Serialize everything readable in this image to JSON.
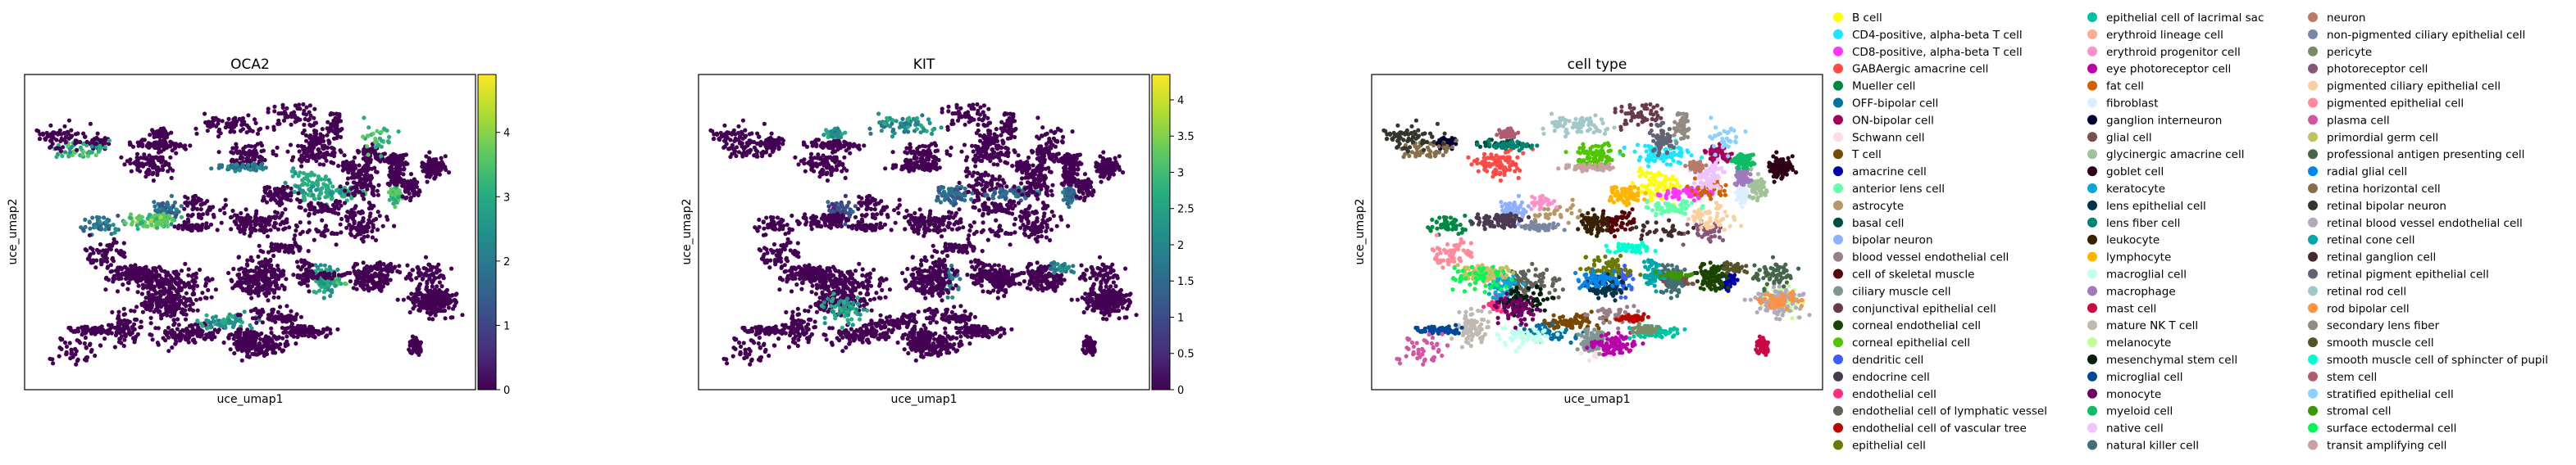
{
  "chart_data": [
    {
      "type": "scatter",
      "title": "OCA2",
      "xlabel": "uce_umap1",
      "ylabel": "uce_umap2",
      "colormap": "viridis",
      "colorbar": {
        "min": 0,
        "max": 4.9,
        "ticks": [
          "0",
          "1",
          "2",
          "3",
          "4"
        ],
        "tick_values": [
          0,
          1,
          2,
          3,
          4
        ]
      }
    },
    {
      "type": "scatter",
      "title": "KIT",
      "xlabel": "uce_umap1",
      "ylabel": "uce_umap2",
      "colormap": "viridis",
      "colorbar": {
        "min": 0,
        "max": 4.35,
        "ticks": [
          "0",
          "0.5",
          "1",
          "1.5",
          "2",
          "2.5",
          "3",
          "3.5",
          "4"
        ],
        "tick_values": [
          0,
          0.5,
          1,
          1.5,
          2,
          2.5,
          3,
          3.5,
          4
        ]
      }
    },
    {
      "type": "scatter",
      "title": "cell type",
      "xlabel": "uce_umap1",
      "ylabel": "uce_umap2",
      "legend_placement": "right",
      "legend": [
        {
          "label": "B cell",
          "color": "#ffff00"
        },
        {
          "label": "CD4-positive, alpha-beta T cell",
          "color": "#1ce6ff"
        },
        {
          "label": "CD8-positive, alpha-beta T cell",
          "color": "#ff34ff"
        },
        {
          "label": "GABAergic amacrine cell",
          "color": "#ff4a46"
        },
        {
          "label": "Mueller cell",
          "color": "#008941"
        },
        {
          "label": "OFF-bipolar cell",
          "color": "#006fa6"
        },
        {
          "label": "ON-bipolar cell",
          "color": "#a30059"
        },
        {
          "label": "Schwann cell",
          "color": "#ffdbe5"
        },
        {
          "label": "T cell",
          "color": "#7a4900"
        },
        {
          "label": "amacrine cell",
          "color": "#0000a6"
        },
        {
          "label": "anterior lens cell",
          "color": "#63ffac"
        },
        {
          "label": "astrocyte",
          "color": "#b79762"
        },
        {
          "label": "basal cell",
          "color": "#004d43"
        },
        {
          "label": "bipolar neuron",
          "color": "#8fb0ff"
        },
        {
          "label": "blood vessel endothelial cell",
          "color": "#997d87"
        },
        {
          "label": "cell of skeletal muscle",
          "color": "#5a0007"
        },
        {
          "label": "ciliary muscle cell",
          "color": "#809693"
        },
        {
          "label": "conjunctival epithelial cell",
          "color": "#6a3a4c"
        },
        {
          "label": "corneal endothelial cell",
          "color": "#1b4400"
        },
        {
          "label": "corneal epithelial cell",
          "color": "#4fc601"
        },
        {
          "label": "dendritic cell",
          "color": "#3b5dff"
        },
        {
          "label": "endocrine cell",
          "color": "#4a3b53"
        },
        {
          "label": "endothelial cell",
          "color": "#ff2f80"
        },
        {
          "label": "endothelial cell of lymphatic vessel",
          "color": "#61615a"
        },
        {
          "label": "endothelial cell of vascular tree",
          "color": "#ba0900"
        },
        {
          "label": "epithelial cell",
          "color": "#6b7900"
        },
        {
          "label": "epithelial cell of lacrimal sac",
          "color": "#00c2a0"
        },
        {
          "label": "erythroid lineage cell",
          "color": "#ffaa92"
        },
        {
          "label": "erythroid progenitor cell",
          "color": "#ff90c9"
        },
        {
          "label": "eye photoreceptor cell",
          "color": "#b903aa"
        },
        {
          "label": "fat cell",
          "color": "#d16100"
        },
        {
          "label": "fibroblast",
          "color": "#ddefff"
        },
        {
          "label": "ganglion interneuron",
          "color": "#000035"
        },
        {
          "label": "glial cell",
          "color": "#7b4f4b"
        },
        {
          "label": "glycinergic amacrine cell",
          "color": "#a1c299"
        },
        {
          "label": "goblet cell",
          "color": "#300018"
        },
        {
          "label": "keratocyte",
          "color": "#0aa6d8"
        },
        {
          "label": "lens epithelial cell",
          "color": "#013349"
        },
        {
          "label": "lens fiber cell",
          "color": "#00846f"
        },
        {
          "label": "leukocyte",
          "color": "#372101"
        },
        {
          "label": "lymphocyte",
          "color": "#ffb500"
        },
        {
          "label": "macroglial cell",
          "color": "#c2ffed"
        },
        {
          "label": "macrophage",
          "color": "#a079bf"
        },
        {
          "label": "mast cell",
          "color": "#cc0744"
        },
        {
          "label": "mature NK T cell",
          "color": "#c0b9b2"
        },
        {
          "label": "melanocyte",
          "color": "#c2ff99"
        },
        {
          "label": "mesenchymal stem cell",
          "color": "#001e09"
        },
        {
          "label": "microglial cell",
          "color": "#00489c"
        },
        {
          "label": "monocyte",
          "color": "#6f0062"
        },
        {
          "label": "myeloid cell",
          "color": "#0cbd66"
        },
        {
          "label": "native cell",
          "color": "#eec3ff"
        },
        {
          "label": "natural killer cell",
          "color": "#456d75"
        },
        {
          "label": "neuron",
          "color": "#b77b68"
        },
        {
          "label": "non-pigmented ciliary epithelial cell",
          "color": "#7a87a1"
        },
        {
          "label": "pericyte",
          "color": "#788d66"
        },
        {
          "label": "photoreceptor cell",
          "color": "#885578"
        },
        {
          "label": "pigmented ciliary epithelial cell",
          "color": "#fad09f"
        },
        {
          "label": "pigmented epithelial cell",
          "color": "#ff8a9a"
        },
        {
          "label": "plasma cell",
          "color": "#d157a0"
        },
        {
          "label": "primordial germ cell",
          "color": "#bec459"
        },
        {
          "label": "professional antigen presenting cell",
          "color": "#456648"
        },
        {
          "label": "radial glial cell",
          "color": "#0086ed"
        },
        {
          "label": "retina horizontal cell",
          "color": "#886f4c"
        },
        {
          "label": "retinal bipolar neuron",
          "color": "#34362d"
        },
        {
          "label": "retinal blood vessel endothelial cell",
          "color": "#b4a8bd"
        },
        {
          "label": "retinal cone cell",
          "color": "#00a6aa"
        },
        {
          "label": "retinal ganglion cell",
          "color": "#452c2c"
        },
        {
          "label": "retinal pigment epithelial cell",
          "color": "#636375"
        },
        {
          "label": "retinal rod cell",
          "color": "#a3c8c9"
        },
        {
          "label": "rod bipolar cell",
          "color": "#ff913f"
        },
        {
          "label": "secondary lens fiber",
          "color": "#938a81"
        },
        {
          "label": "smooth muscle cell",
          "color": "#575329"
        },
        {
          "label": "smooth muscle cell of sphincter of pupil",
          "color": "#00fecf"
        },
        {
          "label": "stem cell",
          "color": "#b05b6f"
        },
        {
          "label": "stratified epithelial cell",
          "color": "#8cd0ff"
        },
        {
          "label": "stromal cell",
          "color": "#3b9700"
        },
        {
          "label": "surface ectodermal cell",
          "color": "#04f757"
        },
        {
          "label": "transit amplifying cell",
          "color": "#c8a1a1"
        }
      ]
    }
  ]
}
